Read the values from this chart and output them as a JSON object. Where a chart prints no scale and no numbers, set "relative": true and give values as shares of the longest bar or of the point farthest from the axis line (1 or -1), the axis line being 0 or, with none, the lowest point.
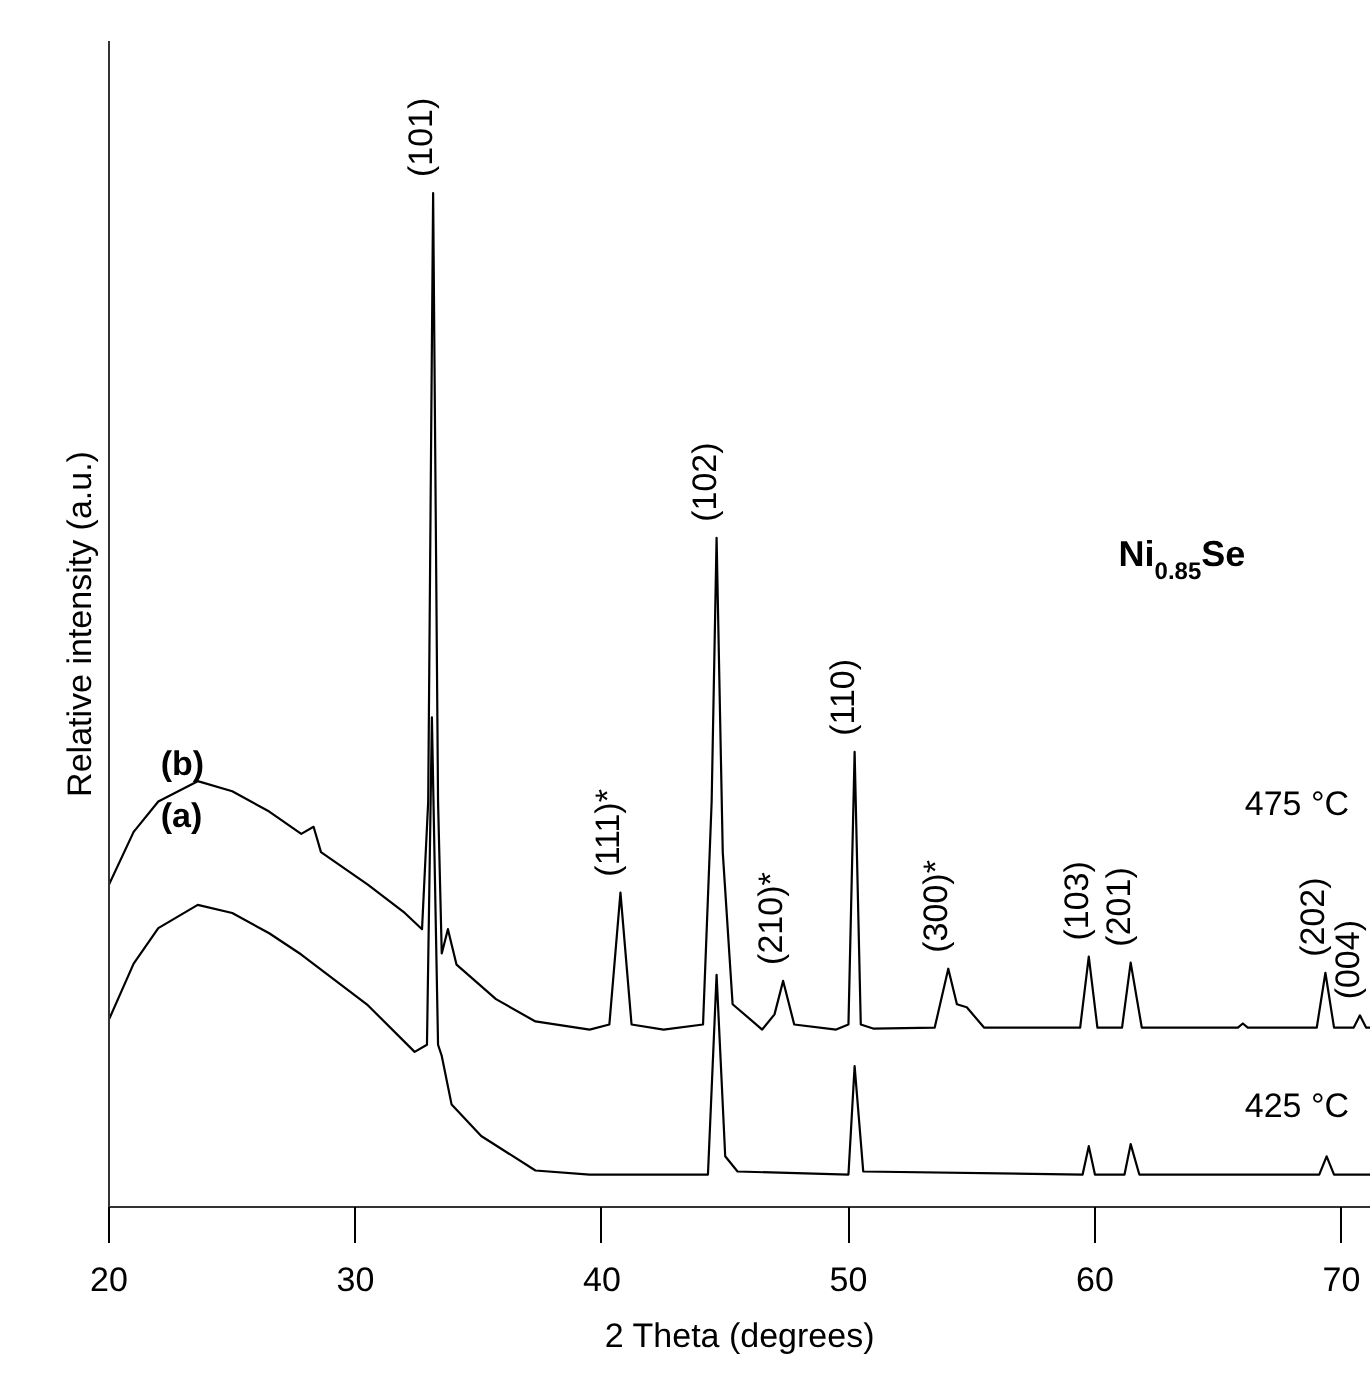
{
  "chart_data": {
    "type": "line",
    "relative": true,
    "xlabel": "2 Theta (degrees)",
    "ylabel": "Relative intensity (a.u.)",
    "xlim": [
      20,
      71.2
    ],
    "xticks": [
      20,
      30,
      40,
      50,
      60,
      70
    ],
    "grid": false,
    "line_style": "solid",
    "marker": "none",
    "series": [
      {
        "color": "#000000",
        "x": [
          20.0,
          21.0,
          22.0,
          23.6,
          25.0,
          26.5,
          27.8,
          28.3,
          28.6,
          30.5,
          32.0,
          32.7,
          32.95,
          33.15,
          33.35,
          33.5,
          33.75,
          34.1,
          35.7,
          37.3,
          39.5,
          40.3,
          40.75,
          41.2,
          42.5,
          44.1,
          44.45,
          44.65,
          44.9,
          45.3,
          46.5,
          47.0,
          47.35,
          47.8,
          49.5,
          50.0,
          50.25,
          50.5,
          51.0,
          53.5,
          54.05,
          54.4,
          54.8,
          55.5,
          59.4,
          59.75,
          60.1,
          61.1,
          61.45,
          61.9,
          65.8,
          66.0,
          66.2,
          69.0,
          69.35,
          69.7,
          70.5,
          70.75,
          71.0,
          71.2
        ],
        "values": [
          0.318,
          0.37,
          0.4,
          0.42,
          0.41,
          0.39,
          0.368,
          0.375,
          0.35,
          0.318,
          0.29,
          0.274,
          0.4,
          1.0,
          0.4,
          0.25,
          0.274,
          0.239,
          0.205,
          0.183,
          0.175,
          0.18,
          0.31,
          0.18,
          0.175,
          0.18,
          0.4,
          0.66,
          0.35,
          0.2,
          0.175,
          0.19,
          0.223,
          0.18,
          0.175,
          0.18,
          0.449,
          0.18,
          0.176,
          0.177,
          0.235,
          0.2,
          0.197,
          0.177,
          0.177,
          0.247,
          0.177,
          0.177,
          0.241,
          0.177,
          0.177,
          0.181,
          0.177,
          0.177,
          0.231,
          0.177,
          0.177,
          0.189,
          0.177,
          0.177
        ]
      },
      {
        "color": "#000000",
        "x": [
          20.0,
          21.0,
          22.0,
          23.6,
          25.0,
          26.5,
          27.8,
          30.5,
          32.4,
          32.9,
          33.1,
          33.35,
          33.5,
          33.9,
          35.1,
          37.3,
          39.5,
          44.3,
          44.65,
          45.0,
          45.5,
          50.0,
          50.25,
          50.6,
          59.5,
          59.75,
          60.0,
          61.2,
          61.45,
          61.8,
          69.1,
          69.4,
          69.7,
          71.2
        ],
        "values": [
          0.185,
          0.24,
          0.275,
          0.298,
          0.29,
          0.27,
          0.249,
          0.199,
          0.153,
          0.16,
          0.483,
          0.16,
          0.149,
          0.101,
          0.07,
          0.036,
          0.032,
          0.032,
          0.229,
          0.05,
          0.035,
          0.032,
          0.139,
          0.035,
          0.032,
          0.06,
          0.032,
          0.032,
          0.062,
          0.032,
          0.032,
          0.05,
          0.032,
          0.032
        ]
      }
    ],
    "annotations": [
      {
        "text": "(101)",
        "x": 33.15,
        "y": 1.0
      },
      {
        "text": "(111)*",
        "x": 40.75,
        "y": 0.31
      },
      {
        "text": "(102)",
        "x": 44.65,
        "y": 0.66
      },
      {
        "text": "(210)*",
        "x": 47.35,
        "y": 0.223
      },
      {
        "text": "(110)",
        "x": 50.25,
        "y": 0.449
      },
      {
        "text": "(300)*",
        "x": 54.05,
        "y": 0.235
      },
      {
        "text": "(103)",
        "x": 59.75,
        "y": 0.247
      },
      {
        "text": "(201)",
        "x": 61.45,
        "y": 0.241
      },
      {
        "text": "(202)",
        "x": 69.35,
        "y": 0.231
      },
      {
        "text": "(004)",
        "x": 70.75,
        "y": 0.189
      },
      "(b)",
      "(a)",
      "475 °C",
      "425 °C",
      "Ni$_{0.85}$Se"
    ]
  }
}
